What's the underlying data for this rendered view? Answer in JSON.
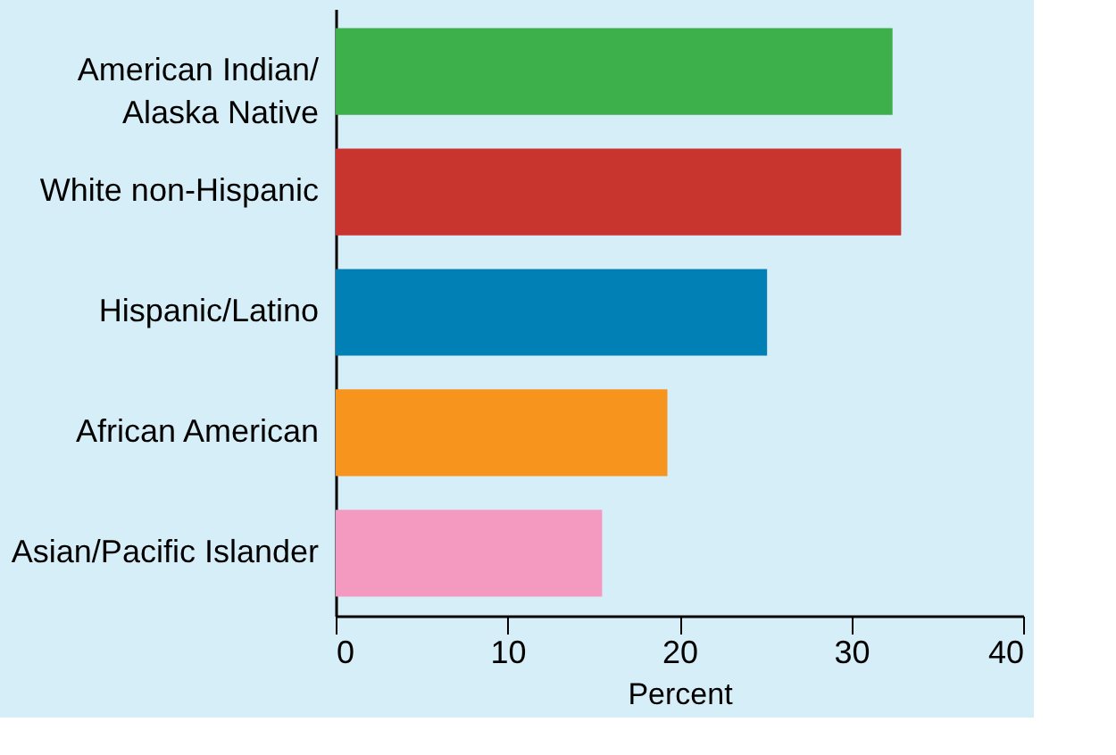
{
  "chart_data": {
    "type": "bar",
    "orientation": "horizontal",
    "xlabel": "Percent",
    "categories": [
      "American Indian/\nAlaska Native",
      "White non-Hispanic",
      "Hispanic/Latino",
      "African American",
      "Asian/Pacific Islander"
    ],
    "values": [
      32.4,
      32.9,
      25.1,
      19.3,
      15.5
    ],
    "colors": [
      "#3db04b",
      "#c8352e",
      "#0080b4",
      "#f7941d",
      "#f49ac1"
    ],
    "xlim": [
      0,
      40
    ],
    "xticks": [
      0,
      10,
      20,
      30,
      40
    ],
    "grid": false
  }
}
